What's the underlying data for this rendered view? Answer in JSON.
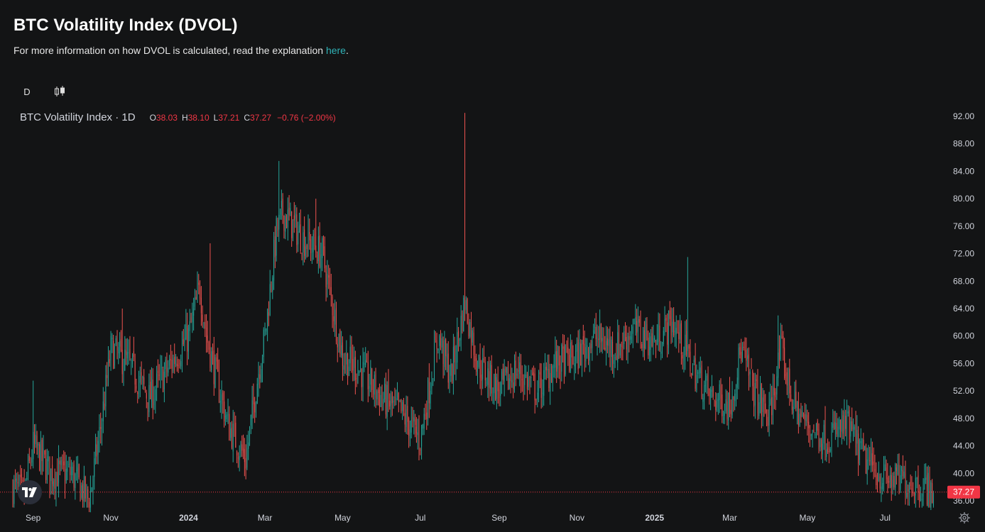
{
  "header": {
    "title": "BTC Volatility Index (DVOL)",
    "subtitle_text": "For more information on how DVOL is calculated, read the explanation ",
    "subtitle_link": "here",
    "subtitle_end": "."
  },
  "toolbar": {
    "interval_label": "D",
    "chart_type_icon": "candlestick-icon"
  },
  "legend": {
    "symbol": "BTC Volatility Index · 1D",
    "o_label": "O",
    "o_value": "38.03",
    "h_label": "H",
    "h_value": "38.10",
    "l_label": "L",
    "l_value": "37.21",
    "c_label": "C",
    "c_value": "37.27",
    "change": "−0.76 (−2.00%)"
  },
  "colors": {
    "background": "#131415",
    "up": "#26a69a",
    "down": "#ef5350",
    "price_line": "#f23645",
    "axis_text": "#d1d4dc"
  },
  "chart_data": {
    "type": "candlestick",
    "y_axis_ticks": [
      36,
      40,
      44,
      48,
      52,
      56,
      60,
      64,
      68,
      72,
      76,
      80,
      84,
      88,
      92
    ],
    "y_tick_labels": [
      "36.00",
      "40.00",
      "44.00",
      "48.00",
      "52.00",
      "56.00",
      "60.00",
      "64.00",
      "68.00",
      "72.00",
      "76.00",
      "80.00",
      "84.00",
      "88.00",
      "92.00"
    ],
    "x_tick_labels": [
      "Sep",
      "Nov",
      "2024",
      "Mar",
      "May",
      "Jul",
      "Sep",
      "Nov",
      "2025",
      "Mar",
      "May",
      "Jul"
    ],
    "x_tick_dates": [
      "2023-09-01",
      "2023-11-01",
      "2024-01-01",
      "2024-03-01",
      "2024-05-01",
      "2024-07-01",
      "2024-09-01",
      "2024-11-01",
      "2025-01-01",
      "2025-03-01",
      "2025-05-01",
      "2025-07-01"
    ],
    "x_range": [
      "2023-08-16",
      "2025-08-10"
    ],
    "y_range": [
      34.5,
      93
    ],
    "last_price": 37.27,
    "last_price_label": "37.27",
    "approximate_close_path": [
      [
        "2023-08-16",
        38
      ],
      [
        "2023-08-25",
        37
      ],
      [
        "2023-09-01",
        44
      ],
      [
        "2023-09-15",
        40
      ],
      [
        "2023-10-01",
        40
      ],
      [
        "2023-10-15",
        36
      ],
      [
        "2023-10-25",
        48
      ],
      [
        "2023-11-01",
        58
      ],
      [
        "2023-11-15",
        56
      ],
      [
        "2023-12-01",
        51
      ],
      [
        "2023-12-15",
        55
      ],
      [
        "2024-01-01",
        60
      ],
      [
        "2024-01-10",
        67
      ],
      [
        "2024-01-15",
        60
      ],
      [
        "2024-02-01",
        47
      ],
      [
        "2024-02-15",
        42
      ],
      [
        "2024-02-25",
        55
      ],
      [
        "2024-03-01",
        60
      ],
      [
        "2024-03-10",
        75
      ],
      [
        "2024-03-15",
        78
      ],
      [
        "2024-04-01",
        74
      ],
      [
        "2024-04-15",
        72
      ],
      [
        "2024-05-01",
        57
      ],
      [
        "2024-05-15",
        55
      ],
      [
        "2024-06-01",
        51
      ],
      [
        "2024-06-15",
        49
      ],
      [
        "2024-07-01",
        45
      ],
      [
        "2024-07-15",
        60
      ],
      [
        "2024-07-25",
        54
      ],
      [
        "2024-08-05",
        65
      ],
      [
        "2024-08-15",
        56
      ],
      [
        "2024-09-01",
        52
      ],
      [
        "2024-09-15",
        55
      ],
      [
        "2024-10-01",
        52
      ],
      [
        "2024-10-15",
        56
      ],
      [
        "2024-11-01",
        57
      ],
      [
        "2024-11-15",
        60
      ],
      [
        "2024-12-01",
        58
      ],
      [
        "2024-12-15",
        61
      ],
      [
        "2025-01-01",
        59
      ],
      [
        "2025-01-15",
        62
      ],
      [
        "2025-02-01",
        55
      ],
      [
        "2025-02-15",
        51
      ],
      [
        "2025-03-01",
        50
      ],
      [
        "2025-03-10",
        58
      ],
      [
        "2025-03-20",
        52
      ],
      [
        "2025-04-01",
        48
      ],
      [
        "2025-04-10",
        58
      ],
      [
        "2025-04-20",
        50
      ],
      [
        "2025-05-01",
        47
      ],
      [
        "2025-05-15",
        45
      ],
      [
        "2025-06-01",
        47
      ],
      [
        "2025-06-15",
        42
      ],
      [
        "2025-07-01",
        39
      ],
      [
        "2025-07-15",
        39
      ],
      [
        "2025-08-01",
        38
      ],
      [
        "2025-08-08",
        37.27
      ]
    ],
    "spikes": [
      [
        "2023-09-01",
        53.5
      ],
      [
        "2023-11-10",
        64
      ],
      [
        "2024-01-18",
        73.5
      ],
      [
        "2024-03-12",
        85.5
      ],
      [
        "2024-04-10",
        80
      ],
      [
        "2024-08-05",
        92.5
      ],
      [
        "2025-01-27",
        71.5
      ],
      [
        "2025-04-08",
        63
      ]
    ]
  }
}
